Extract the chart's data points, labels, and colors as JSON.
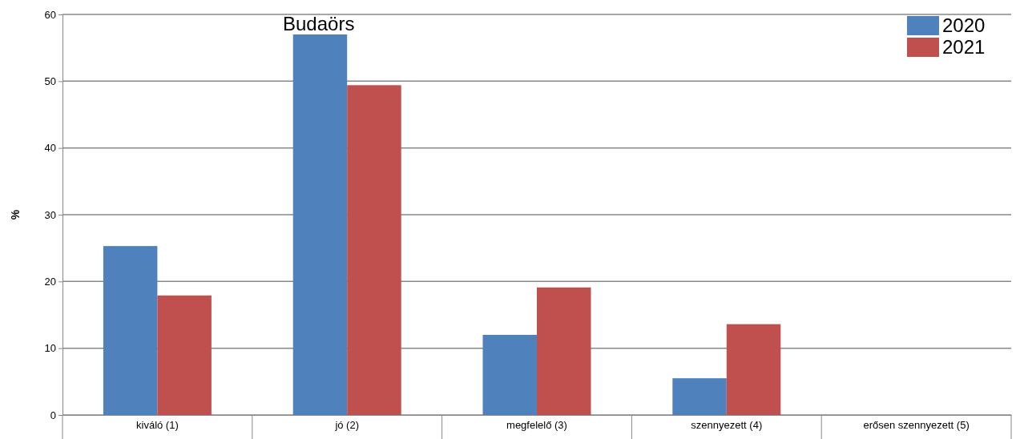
{
  "chart_data": {
    "type": "bar",
    "title": "Budaörs",
    "ylabel": "%",
    "categories": [
      "kiváló (1)",
      "jó (2)",
      "megfelelő (3)",
      "szennyezett (4)",
      "erősen szennyezett (5)"
    ],
    "series": [
      {
        "name": "2020",
        "color": "#4f81bd",
        "values": [
          25.3,
          57.0,
          12.0,
          5.5,
          0
        ]
      },
      {
        "name": "2021",
        "color": "#c0504d",
        "values": [
          17.9,
          49.4,
          19.1,
          13.6,
          0
        ]
      }
    ],
    "ylim": [
      0,
      60
    ],
    "yticks": [
      0,
      10,
      20,
      30,
      40,
      50,
      60
    ],
    "grid": "y",
    "legend": "top right"
  }
}
